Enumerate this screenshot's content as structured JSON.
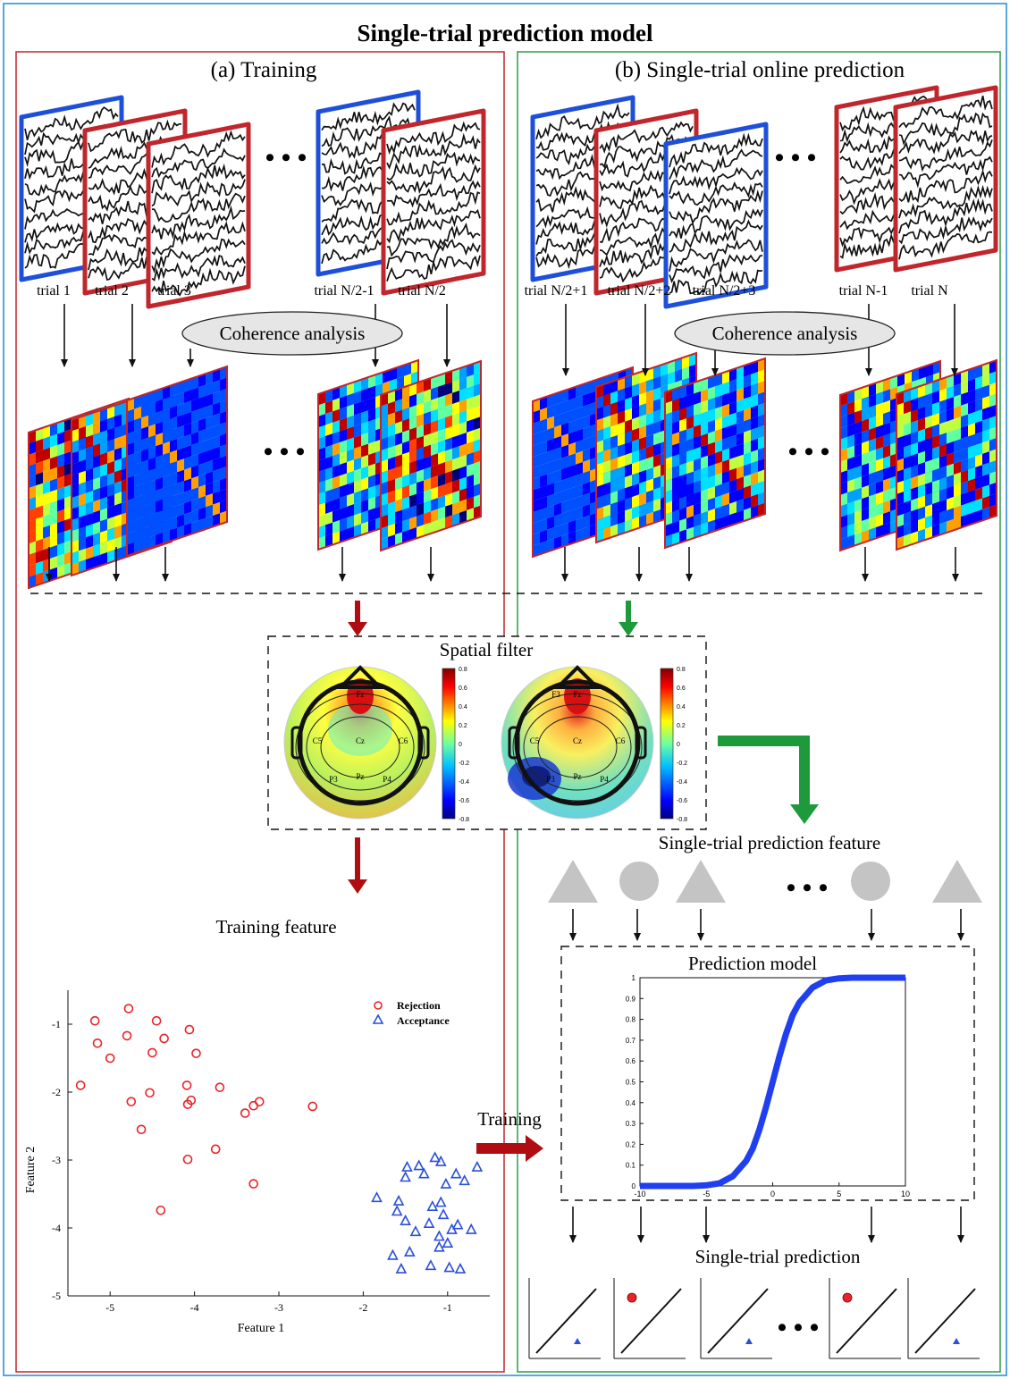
{
  "title": "Single-trial prediction model",
  "panel_a": {
    "title": "(a) Training",
    "trial_labels": [
      "trial 1",
      "trial 2",
      "trial 3",
      "trial N/2-1",
      "trial N/2"
    ],
    "coherence_label": "Coherence analysis",
    "training_feature_label": "Training feature"
  },
  "panel_b": {
    "title": "(b) Single-trial online prediction",
    "trial_labels": [
      "trial N/2+1",
      "trial N/2+2",
      "trial N/2+3",
      "trial N-1",
      "trial N"
    ],
    "coherence_label": "Coherence analysis",
    "prediction_feature_label": "Single-trial prediction feature",
    "prediction_model_label": "Prediction model",
    "single_trial_prediction_label": "Single-trial prediction",
    "training_arrow_label": "Training"
  },
  "spatial_filter": {
    "label": "Spatial filter",
    "electrodes_left": [
      "Fz",
      "C5",
      "Cz",
      "C6",
      "P3",
      "Pz",
      "P4"
    ],
    "electrodes_right": [
      "Fz",
      "F3",
      "C5",
      "Cz",
      "C6",
      "P3",
      "Pz",
      "P4"
    ],
    "colorbar_ticks": [
      "0.8",
      "0.6",
      "0.4",
      "0.2",
      "0",
      "-0.2",
      "-0.4",
      "-0.6",
      "-0.8"
    ]
  },
  "ellipsis": "• • •",
  "colors": {
    "panel_a_border": "#c0262c",
    "panel_b_border": "#2e9a47",
    "outer_border": "#1f8ad6",
    "trial_blue": "#1e4fd8",
    "trial_red": "#c0262c",
    "arrow_red": "#b00d13",
    "arrow_green": "#1e9a3c",
    "rejection": "#e8242a",
    "acceptance": "#2a4fd8"
  },
  "chart_data": [
    {
      "type": "scatter",
      "xlabel": "Feature 1",
      "ylabel": "Feature 2",
      "xlim": [
        -5.5,
        -0.5
      ],
      "ylim": [
        -5,
        -0.5
      ],
      "xticks": [
        "-5",
        "-4",
        "-3",
        "-2",
        "-1"
      ],
      "yticks": [
        "-1",
        "-2",
        "-3",
        "-4",
        "-5"
      ],
      "legend_position": "top-right",
      "series": [
        {
          "name": "Rejection",
          "marker": "circle",
          "points": [
            [
              -4.78,
              -0.77
            ],
            [
              -5.18,
              -0.95
            ],
            [
              -4.45,
              -0.95
            ],
            [
              -5.15,
              -1.28
            ],
            [
              -4.8,
              -1.17
            ],
            [
              -4.36,
              -1.21
            ],
            [
              -4.06,
              -1.08
            ],
            [
              -3.98,
              -1.43
            ],
            [
              -5.0,
              -1.5
            ],
            [
              -4.5,
              -1.42
            ],
            [
              -5.35,
              -1.9
            ],
            [
              -4.53,
              -2.01
            ],
            [
              -4.75,
              -2.14
            ],
            [
              -4.09,
              -1.9
            ],
            [
              -4.04,
              -2.12
            ],
            [
              -4.08,
              -2.18
            ],
            [
              -3.7,
              -1.93
            ],
            [
              -3.23,
              -2.14
            ],
            [
              -3.3,
              -2.2
            ],
            [
              -3.4,
              -2.31
            ],
            [
              -2.6,
              -2.21
            ],
            [
              -4.63,
              -2.55
            ],
            [
              -3.75,
              -2.84
            ],
            [
              -4.08,
              -2.99
            ],
            [
              -3.3,
              -3.35
            ],
            [
              -4.4,
              -3.74
            ]
          ]
        },
        {
          "name": "Acceptance",
          "marker": "triangle",
          "points": [
            [
              -1.15,
              -2.96
            ],
            [
              -1.48,
              -3.1
            ],
            [
              -1.08,
              -3.02
            ],
            [
              -1.34,
              -3.08
            ],
            [
              -0.65,
              -3.1
            ],
            [
              -1.28,
              -3.2
            ],
            [
              -1.5,
              -3.25
            ],
            [
              -0.9,
              -3.2
            ],
            [
              -1.02,
              -3.35
            ],
            [
              -0.8,
              -3.3
            ],
            [
              -1.84,
              -3.55
            ],
            [
              -1.58,
              -3.6
            ],
            [
              -1.08,
              -3.62
            ],
            [
              -1.18,
              -3.68
            ],
            [
              -1.6,
              -3.75
            ],
            [
              -1.05,
              -3.8
            ],
            [
              -0.88,
              -3.95
            ],
            [
              -1.5,
              -3.89
            ],
            [
              -1.22,
              -3.93
            ],
            [
              -0.95,
              -4.02
            ],
            [
              -0.72,
              -4.02
            ],
            [
              -1.1,
              -4.12
            ],
            [
              -1.38,
              -4.05
            ],
            [
              -1.0,
              -4.22
            ],
            [
              -1.1,
              -4.28
            ],
            [
              -1.45,
              -4.35
            ],
            [
              -1.55,
              -4.6
            ],
            [
              -1.2,
              -4.55
            ],
            [
              -0.85,
              -4.6
            ],
            [
              -1.65,
              -4.4
            ],
            [
              -0.98,
              -4.58
            ]
          ]
        }
      ]
    },
    {
      "type": "line",
      "title": "Prediction model",
      "xlim": [
        -10,
        10
      ],
      "ylim": [
        0,
        1
      ],
      "xticks": [
        "-10",
        "-5",
        "0",
        "5",
        "10"
      ],
      "yticks": [
        "0",
        "0.1",
        "0.2",
        "0.3",
        "0.4",
        "0.5",
        "0.6",
        "0.7",
        "0.8",
        "0.9",
        "1"
      ],
      "series": [
        {
          "x": [
            -10,
            -8,
            -6,
            -5,
            -4,
            -3,
            -2,
            -1.5,
            -1,
            -0.5,
            0,
            0.5,
            1,
            1.5,
            2,
            3,
            4,
            5,
            6,
            8,
            10
          ],
          "y": [
            0.0,
            0.0,
            0.0,
            0.003,
            0.013,
            0.047,
            0.12,
            0.18,
            0.27,
            0.38,
            0.5,
            0.62,
            0.73,
            0.82,
            0.88,
            0.953,
            0.987,
            0.997,
            1.0,
            1.0,
            1.0
          ]
        }
      ]
    }
  ]
}
